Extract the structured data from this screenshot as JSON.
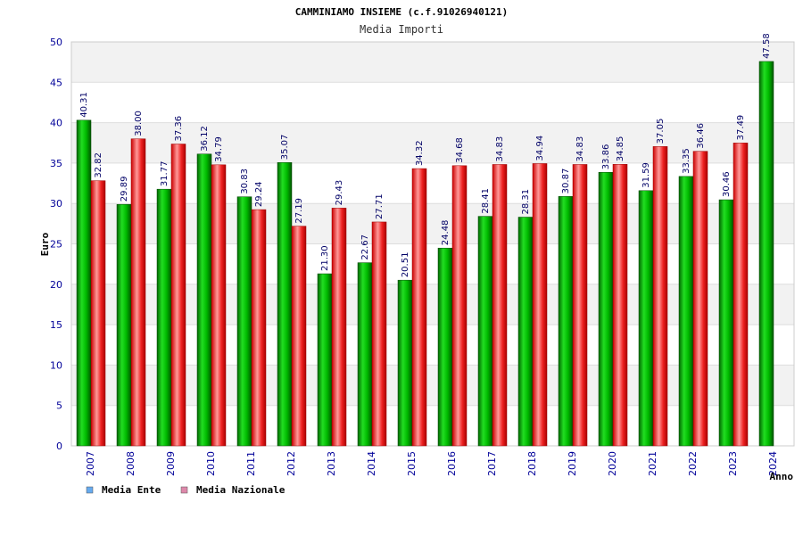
{
  "chart_data": {
    "type": "bar",
    "title": "CAMMINIAMO INSIEME (c.f.91026940121)",
    "subtitle": "Media Importi",
    "xlabel": "Anno",
    "ylabel": "Euro",
    "ylim": [
      0,
      50
    ],
    "yticks": [
      0,
      5,
      10,
      15,
      20,
      25,
      30,
      35,
      40,
      45,
      50
    ],
    "grid": true,
    "legend_position": "bottom-left",
    "categories": [
      "2007",
      "2008",
      "2009",
      "2010",
      "2011",
      "2012",
      "2013",
      "2014",
      "2015",
      "2016",
      "2017",
      "2018",
      "2019",
      "2020",
      "2021",
      "2022",
      "2023",
      "2024"
    ],
    "series": [
      {
        "name": "Media Ente",
        "color": "#00aa00",
        "legend_color": "#66aaee",
        "values": [
          40.31,
          29.89,
          31.77,
          36.12,
          30.83,
          35.07,
          21.3,
          22.67,
          20.51,
          24.48,
          28.41,
          28.31,
          30.87,
          33.86,
          31.59,
          33.35,
          30.46,
          47.58
        ],
        "labels": [
          "40.31",
          "29.89",
          "31.77",
          "36.12",
          "30.83",
          "35.07",
          "21.30",
          "22.67",
          "20.51",
          "24.48",
          "28.41",
          "28.31",
          "30.87",
          "33.86",
          "31.59",
          "33.35",
          "30.46",
          "47.58"
        ]
      },
      {
        "name": "Media Nazionale",
        "color": "#ee1111",
        "legend_color": "#dd88aa",
        "values": [
          32.82,
          38.0,
          37.36,
          34.79,
          29.24,
          27.19,
          29.43,
          27.71,
          34.32,
          34.68,
          34.83,
          34.94,
          34.83,
          34.85,
          37.05,
          36.46,
          37.49,
          null
        ],
        "labels": [
          "32.82",
          "38.00",
          "37.36",
          "34.79",
          "29.24",
          "27.19",
          "29.43",
          "27.71",
          "34.32",
          "34.68",
          "34.83",
          "34.94",
          "34.83",
          "34.85",
          "37.05",
          "36.46",
          "37.49",
          null
        ]
      }
    ]
  }
}
